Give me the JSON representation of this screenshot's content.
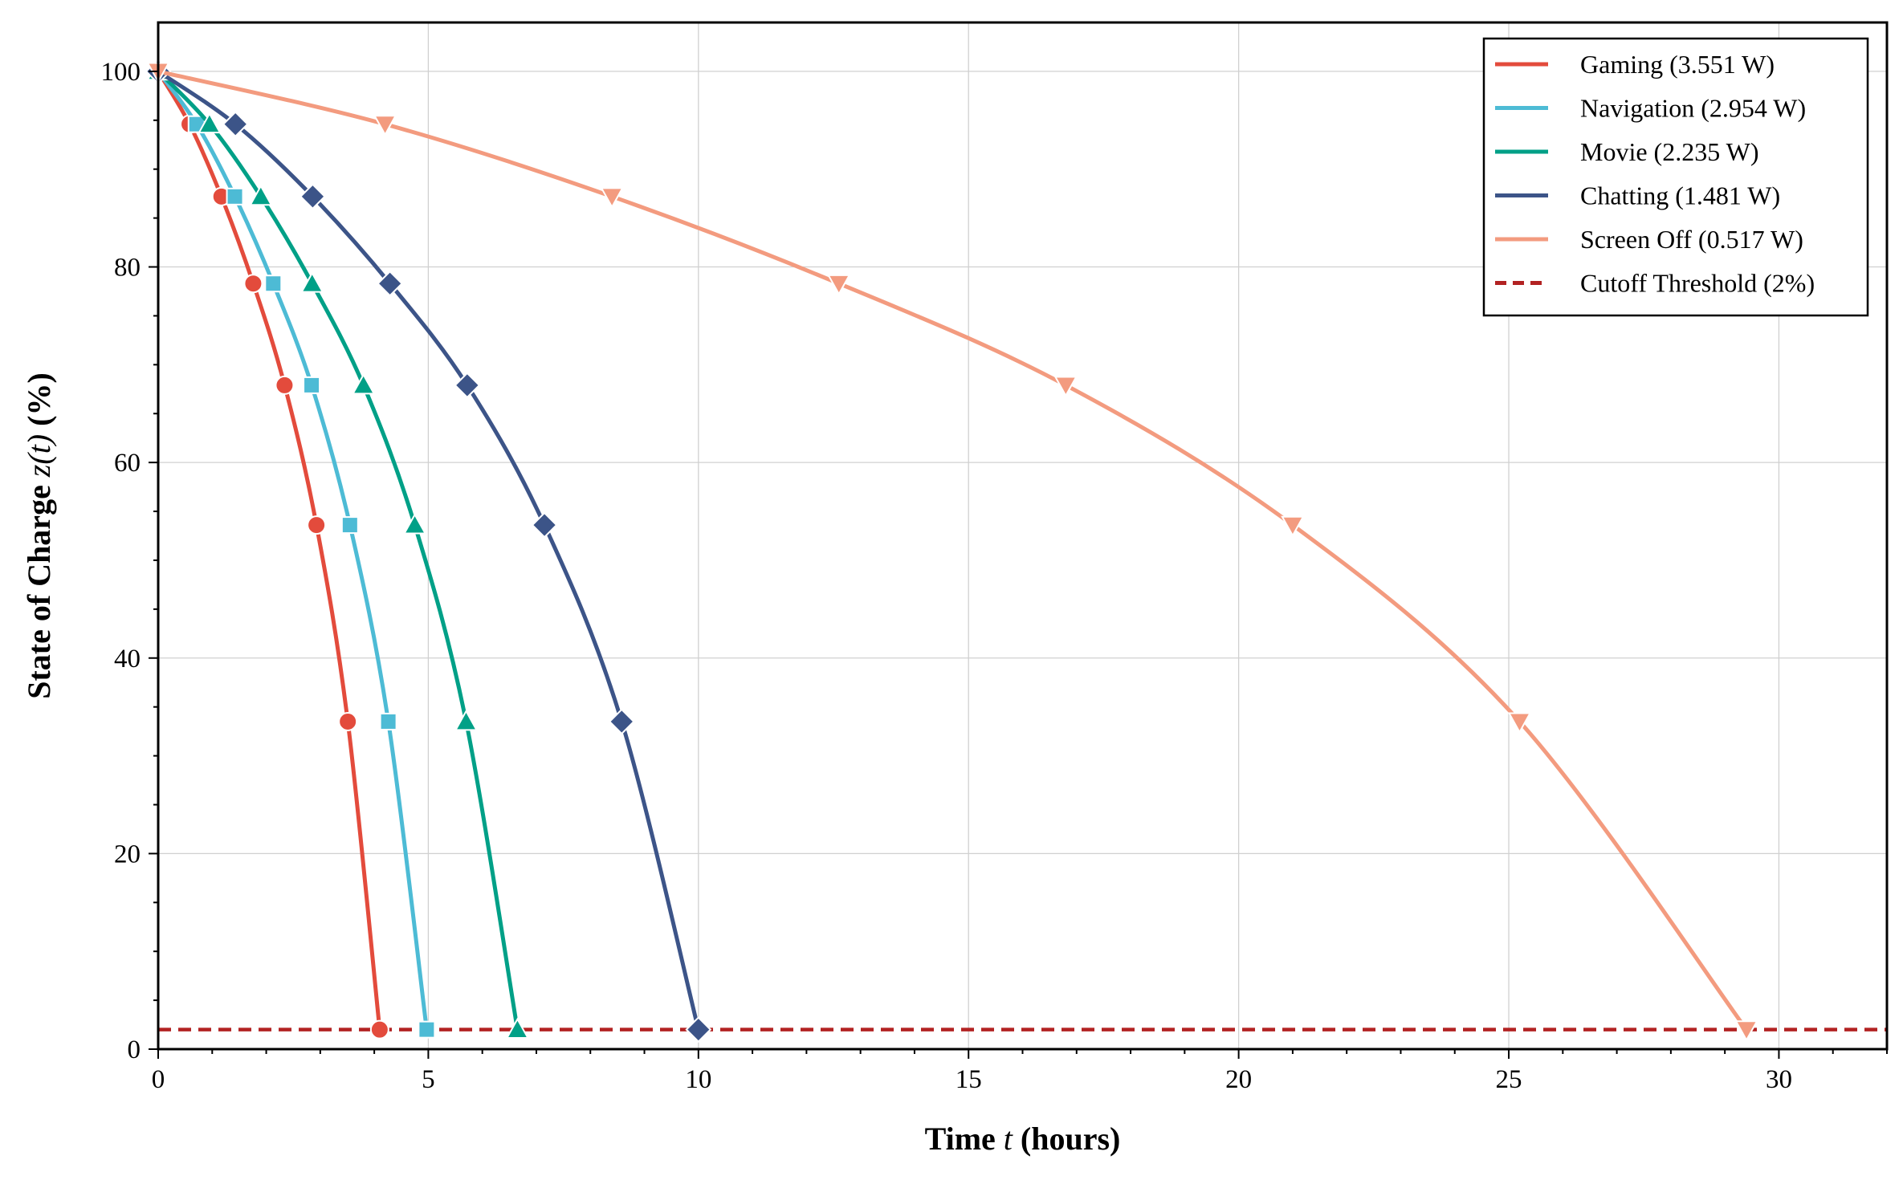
{
  "chart_data": {
    "type": "line",
    "xlabel": {
      "pre": "Time ",
      "var": "t",
      "post": " (hours)"
    },
    "ylabel": {
      "pre": "State of Charge ",
      "var": "z(t)",
      "post": " (%)"
    },
    "xlim": [
      0,
      32
    ],
    "ylim": [
      0,
      105
    ],
    "xticks": [
      0,
      5,
      10,
      15,
      20,
      25,
      30
    ],
    "yticks": [
      0,
      20,
      40,
      60,
      80,
      100
    ],
    "grid": true,
    "legend_position": "top-right",
    "series": [
      {
        "name": "Gaming (3.551 W)",
        "color": "#e34b3c",
        "marker": "circle",
        "x": [
          0,
          0.58,
          1.17,
          1.76,
          2.34,
          2.93,
          3.51,
          4.1
        ],
        "y": [
          100,
          94.6,
          87.2,
          78.3,
          67.9,
          53.6,
          33.5,
          2
        ]
      },
      {
        "name": "Navigation (2.954 W)",
        "color": "#4dbbd5",
        "marker": "square",
        "x": [
          0,
          0.71,
          1.42,
          2.13,
          2.84,
          3.55,
          4.26,
          4.97
        ],
        "y": [
          100,
          94.6,
          87.2,
          78.3,
          67.9,
          53.6,
          33.5,
          2
        ]
      },
      {
        "name": "Movie (2.235 W)",
        "color": "#00a087",
        "marker": "triangle-up",
        "x": [
          0,
          0.95,
          1.9,
          2.85,
          3.8,
          4.75,
          5.7,
          6.65
        ],
        "y": [
          100,
          94.6,
          87.2,
          78.3,
          67.9,
          53.6,
          33.5,
          2
        ]
      },
      {
        "name": "Chatting (1.481 W)",
        "color": "#3c5488",
        "marker": "diamond",
        "x": [
          0,
          1.43,
          2.86,
          4.29,
          5.72,
          7.15,
          8.58,
          10.0
        ],
        "y": [
          100,
          94.6,
          87.2,
          78.3,
          67.9,
          53.6,
          33.5,
          2
        ]
      },
      {
        "name": "Screen Off (0.517 W)",
        "color": "#f39b7f",
        "marker": "triangle-down",
        "x": [
          0,
          4.2,
          8.4,
          12.6,
          16.8,
          21.0,
          25.2,
          29.4
        ],
        "y": [
          100,
          94.6,
          87.2,
          78.3,
          67.9,
          53.6,
          33.5,
          2
        ]
      }
    ],
    "reference_line": {
      "name": "Cutoff Threshold (2%)",
      "y": 2,
      "color": "#b22222",
      "style": "dashed"
    }
  }
}
